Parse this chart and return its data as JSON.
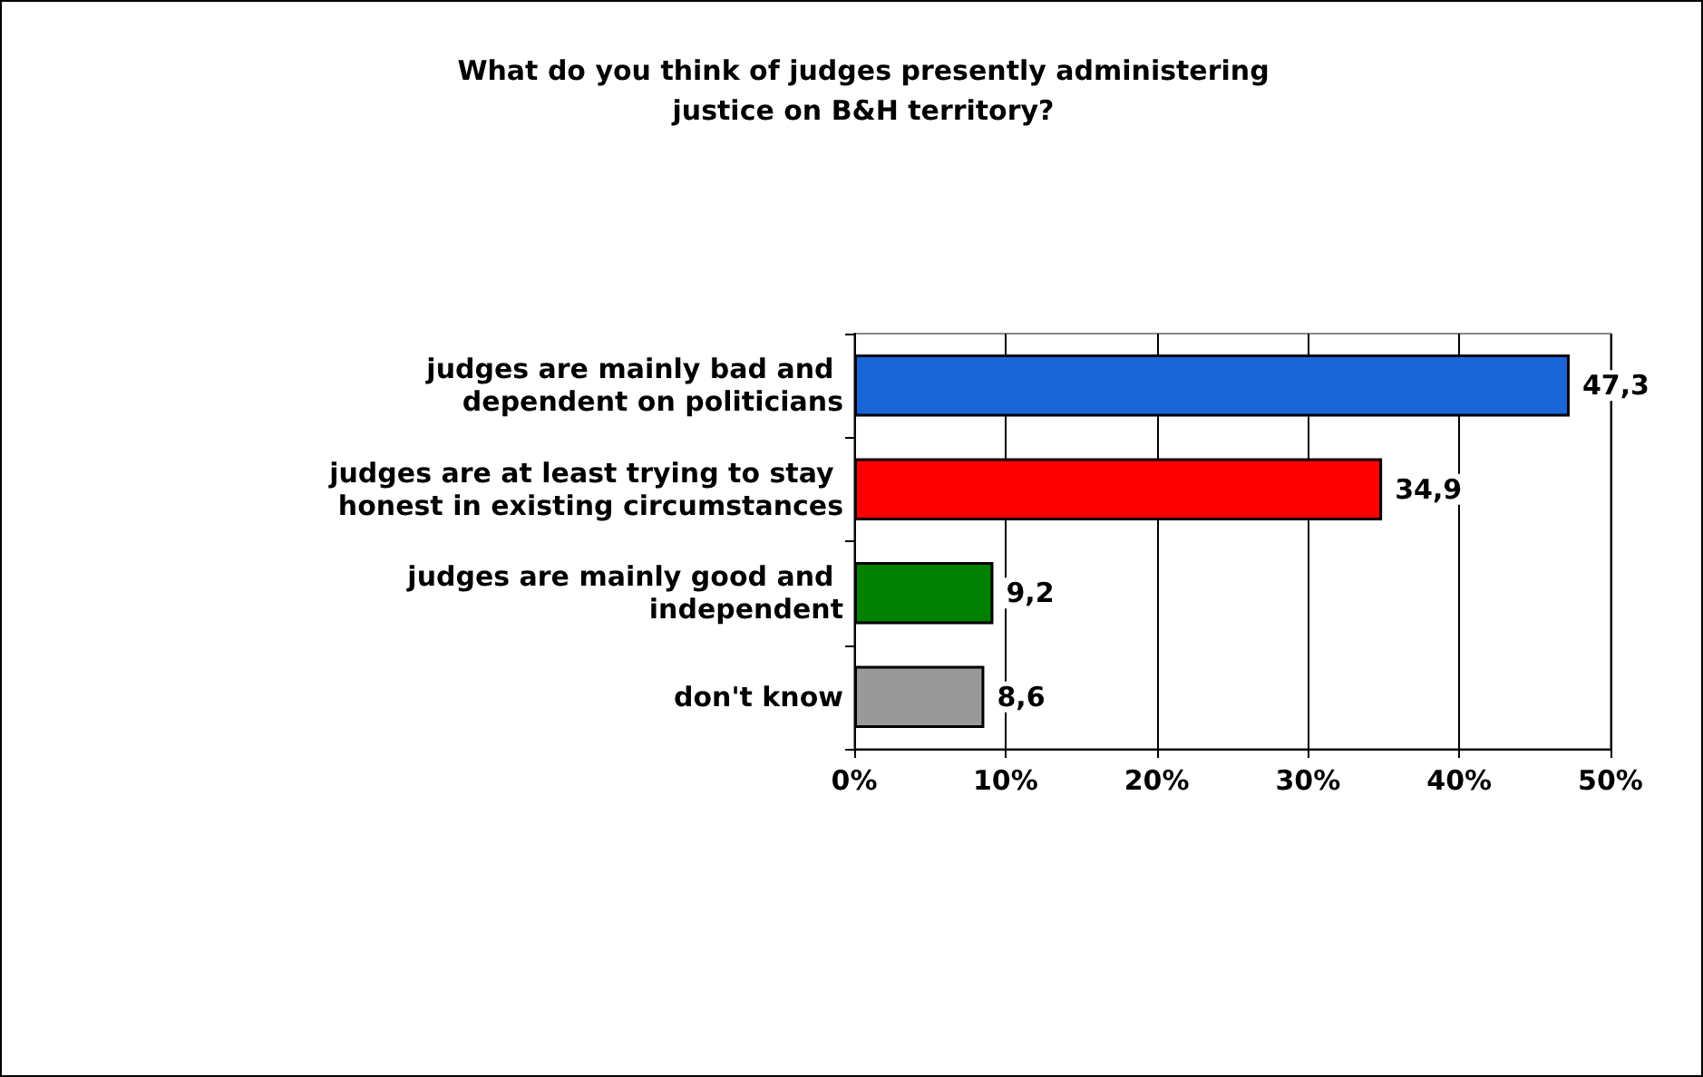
{
  "chart_data": {
    "type": "bar",
    "orientation": "horizontal",
    "title": "What do you think of judges presently administering\njustice on B&H territory?",
    "categories": [
      "judges are mainly bad and dependent on politicians",
      "judges are at least trying to stay honest in existing circumstances",
      "judges are mainly good and independent",
      "don't know"
    ],
    "values": [
      47.3,
      34.9,
      9.2,
      8.6
    ],
    "colors": [
      "#1a66d9",
      "#ff0000",
      "#008000",
      "#999999"
    ],
    "value_labels": [
      "47,3",
      "34,9",
      "9,2",
      "8,6"
    ],
    "xlim": [
      0,
      50
    ],
    "xticks": [
      {
        "value": 0,
        "label": "0%"
      },
      {
        "value": 10,
        "label": "10%"
      },
      {
        "value": 20,
        "label": "20%"
      },
      {
        "value": 30,
        "label": "30%"
      },
      {
        "value": 40,
        "label": "40%"
      },
      {
        "value": 50,
        "label": "50%"
      }
    ],
    "grid": "x"
  }
}
